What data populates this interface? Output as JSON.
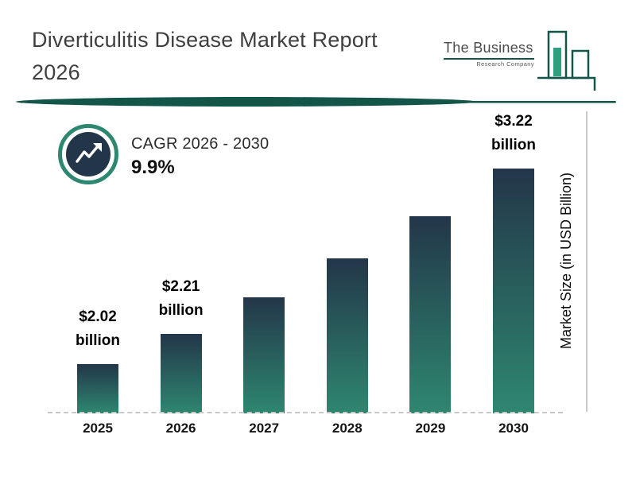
{
  "page": {
    "title_line1": "Diverticulitis Disease Market Report",
    "title_line2": "2026"
  },
  "logo": {
    "name": "The Business",
    "subtitle": "Research Company"
  },
  "cagr": {
    "label": "CAGR 2026 - 2030",
    "value": "9.9%"
  },
  "chart_data": {
    "type": "bar",
    "title": "Diverticulitis Disease Market Report 2026",
    "categories": [
      "2025",
      "2026",
      "2027",
      "2028",
      "2029",
      "2030"
    ],
    "values": [
      2.02,
      2.21,
      2.43,
      2.67,
      2.93,
      3.22
    ],
    "value_labels": [
      "$2.02 billion",
      "$2.21 billion",
      "",
      "",
      "",
      "$3.22 billion"
    ],
    "xlabel": "",
    "ylabel": "Market Size (in USD Billion)",
    "ylim": [
      1.72,
      3.4
    ],
    "grid": false,
    "legend": false,
    "cagr_label": "CAGR 2026 - 2030",
    "cagr_value": "9.9%"
  },
  "colors": {
    "accent_teal": "#2E8770",
    "divider_teal": "#14554A",
    "bar_gradient_top": "#233649",
    "bar_gradient_bottom": "#2E8770",
    "badge_ring": "#2E8770",
    "badge_inner": "#233649",
    "logo_green": "#2FA07F",
    "axis_gray": "#C8C8C8"
  }
}
